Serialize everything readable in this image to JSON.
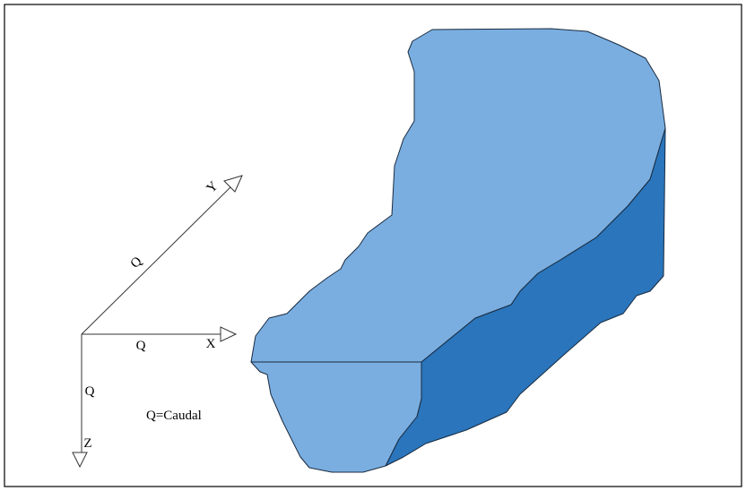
{
  "axes": {
    "y_label": "Y",
    "y_flow": "Q",
    "x_label": "X",
    "x_flow": "Q",
    "z_label": "Z",
    "z_flow": "Q"
  },
  "legend": "Q=Caudal"
}
